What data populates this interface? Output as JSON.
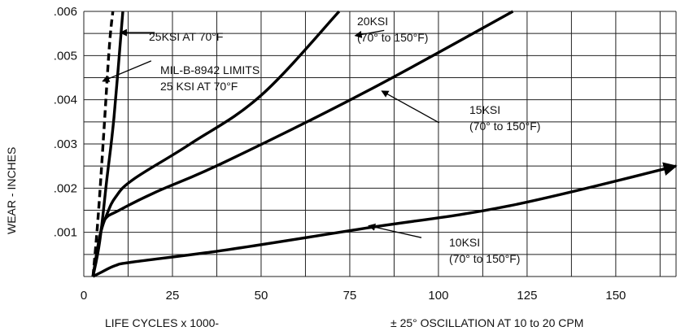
{
  "chart_data": {
    "type": "line",
    "title": "",
    "xlabel": "LIFE CYCLES x 1000-",
    "xlabel_note": "± 25° OSCILLATION AT 10 to 20 CPM",
    "ylabel": "WEAR - INCHES",
    "xlim": [
      0,
      167
    ],
    "ylim": [
      0,
      0.006
    ],
    "x_ticks": [
      "0",
      "25",
      "50",
      "75",
      "100",
      "125",
      "150"
    ],
    "y_ticks": [
      ".001",
      ".002",
      ".003",
      ".004",
      ".005",
      ".006"
    ],
    "grid": true,
    "series": [
      {
        "name": "MIL-B-8942 LIMITS 25 KSI AT 70°F",
        "style": "dashed",
        "points": [
          [
            2.6,
            0
          ],
          [
            4,
            0.0013
          ],
          [
            5.6,
            0.0032
          ],
          [
            7.2,
            0.0052
          ],
          [
            8.2,
            0.006
          ]
        ]
      },
      {
        "name": "25KSI AT 70°F",
        "style": "solid",
        "points": [
          [
            2.6,
            0
          ],
          [
            4.5,
            0.0008
          ],
          [
            6.5,
            0.0022
          ],
          [
            8.5,
            0.0036
          ],
          [
            11,
            0.006
          ]
        ]
      },
      {
        "name": "20KSI (70° to 150°F)",
        "style": "solid",
        "points": [
          [
            2.6,
            0
          ],
          [
            4.5,
            0.0009
          ],
          [
            6.5,
            0.0014
          ],
          [
            9,
            0.0018
          ],
          [
            14,
            0.0022
          ],
          [
            30,
            0.003
          ],
          [
            50,
            0.0041
          ],
          [
            72,
            0.006
          ]
        ]
      },
      {
        "name": "15KSI (70° to 150°F)",
        "style": "solid",
        "points": [
          [
            2.6,
            0
          ],
          [
            4.5,
            0.0009
          ],
          [
            6,
            0.0013
          ],
          [
            10,
            0.0015
          ],
          [
            20,
            0.0019
          ],
          [
            40,
            0.0026
          ],
          [
            80,
            0.0042
          ],
          [
            121,
            0.006
          ]
        ]
      },
      {
        "name": "10KSI (70° to 150°F)",
        "style": "solid",
        "arrow_end": true,
        "points": [
          [
            2.6,
            0
          ],
          [
            5,
            0.0001
          ],
          [
            9,
            0.00025
          ],
          [
            14,
            0.00033
          ],
          [
            40,
            0.0006
          ],
          [
            80,
            0.0011
          ],
          [
            120,
            0.0016
          ],
          [
            167,
            0.0025
          ]
        ]
      }
    ],
    "annotations": [
      {
        "lines": [
          "25KSI AT 70°F"
        ],
        "arrow_from": [
          20,
          0.00552
        ],
        "arrow_to": [
          10.3,
          0.00552
        ]
      },
      {
        "lines": [
          "MIL-B-8942 LIMITS",
          "25 KSI AT 70°F"
        ],
        "arrow_from": [
          19,
          0.00488
        ],
        "arrow_to": [
          5.3,
          0.00442
        ]
      },
      {
        "lines": [
          "20KSI",
          "(70° to 150°F)"
        ],
        "arrow_from": [
          84.7,
          0.00557
        ],
        "arrow_to": [
          76.5,
          0.00545
        ]
      },
      {
        "lines": [
          "15KSI",
          "(70° to 150°F)"
        ],
        "arrow_from": [
          100.2,
          0.00348
        ],
        "arrow_to": [
          84,
          0.0042
        ]
      },
      {
        "lines": [
          "10KSI",
          "(70° to 150°F)"
        ],
        "arrow_from": [
          95.2,
          0.00088
        ],
        "arrow_to": [
          80.3,
          0.00115
        ]
      }
    ]
  }
}
